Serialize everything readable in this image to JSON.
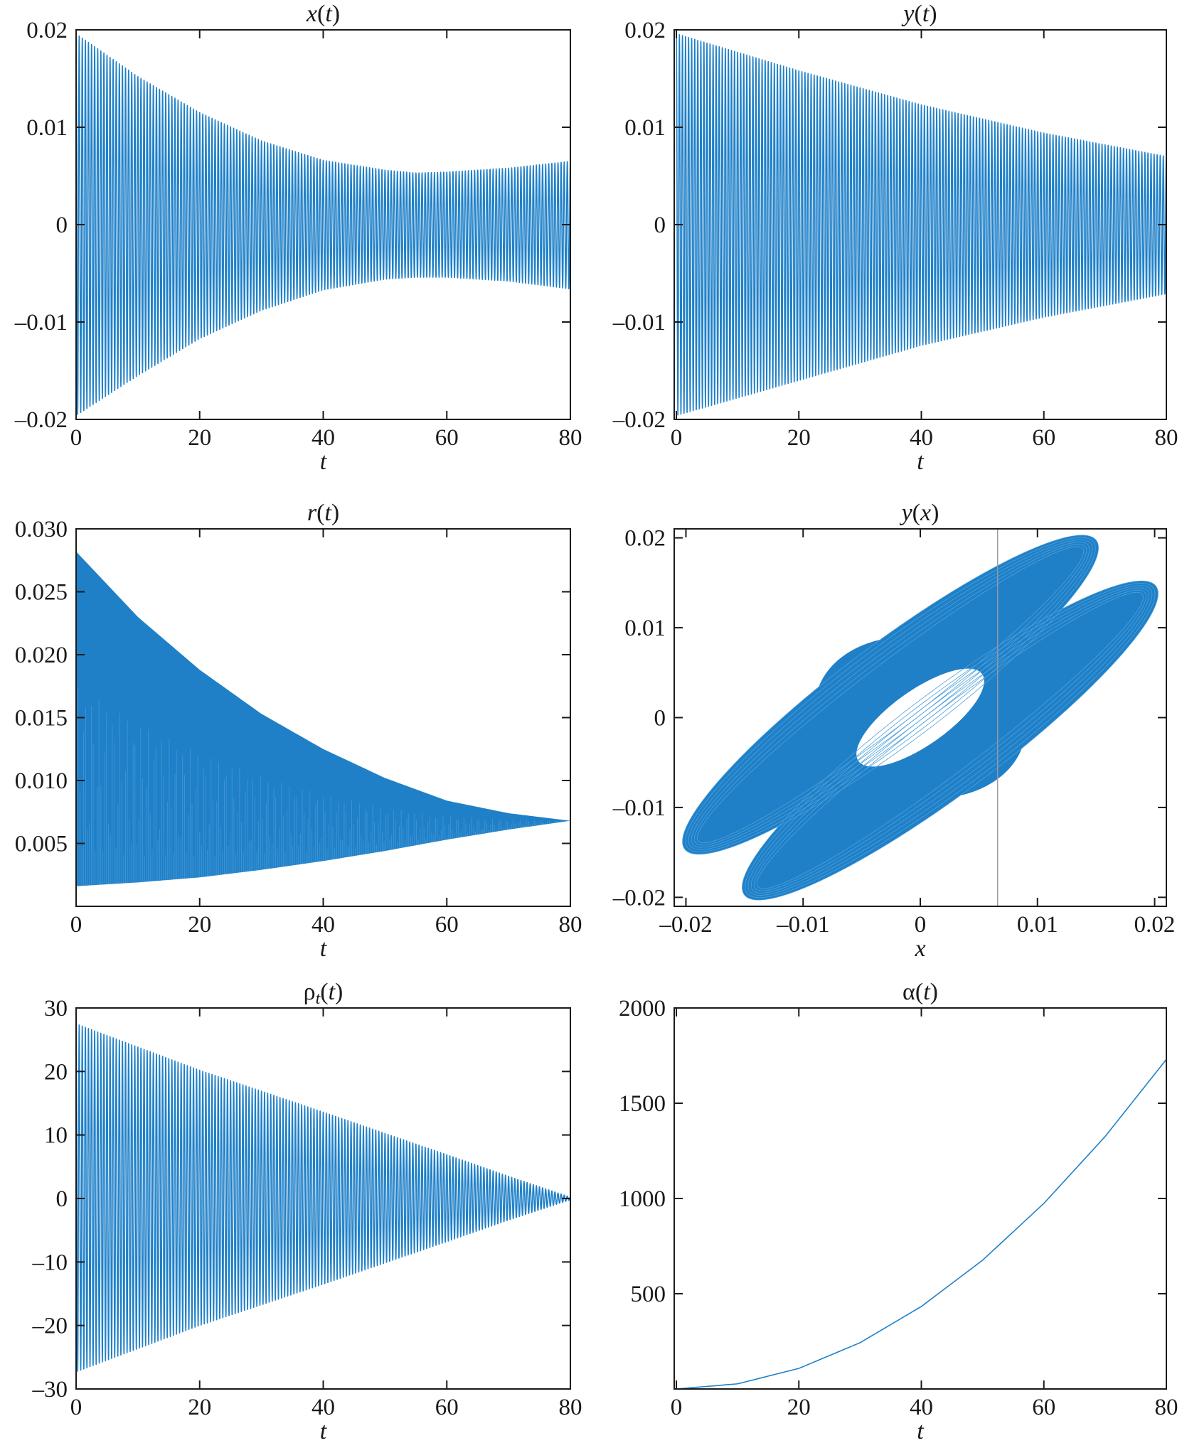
{
  "chart_data": [
    {
      "id": "x",
      "type": "line",
      "title_plain": "x(t)",
      "title_parts": [
        {
          "t": "x",
          "i": true
        },
        {
          "t": "("
        },
        {
          "t": "t",
          "i": true
        },
        {
          "t": ")"
        }
      ],
      "xlabel": "t",
      "xlim": [
        0,
        80
      ],
      "ylim": [
        -0.02,
        0.02
      ],
      "xticks": [
        0,
        20,
        40,
        60,
        80
      ],
      "xtick_labels": [
        "0",
        "20",
        "40",
        "60",
        "80"
      ],
      "yticks": [
        0.02,
        0.01,
        0,
        -0.01,
        -0.02
      ],
      "ytick_labels": [
        "0.02",
        "0.01",
        "0",
        "–0.01",
        "–0.02"
      ],
      "series": [
        {
          "kind": "oscillation",
          "cycles": 160,
          "envelope_t": [
            0,
            10,
            20,
            30,
            40,
            50,
            55,
            60,
            70,
            80
          ],
          "envelope_upper": [
            0.0196,
            0.0152,
            0.0115,
            0.0086,
            0.0066,
            0.0056,
            0.0053,
            0.0054,
            0.0058,
            0.0065
          ],
          "envelope_lower": [
            -0.0196,
            -0.0155,
            -0.0117,
            -0.0088,
            -0.0067,
            -0.0056,
            -0.0054,
            -0.0054,
            -0.0058,
            -0.0066
          ]
        }
      ],
      "grid": false
    },
    {
      "id": "y",
      "type": "line",
      "title_plain": "y(t)",
      "title_parts": [
        {
          "t": "y",
          "i": true
        },
        {
          "t": "("
        },
        {
          "t": "t",
          "i": true
        },
        {
          "t": ")"
        }
      ],
      "xlabel": "t",
      "xlim": [
        0,
        80
      ],
      "ylim": [
        -0.02,
        0.02
      ],
      "xticks": [
        0,
        20,
        40,
        60,
        80
      ],
      "xtick_labels": [
        "0",
        "20",
        "40",
        "60",
        "80"
      ],
      "yticks": [
        0.02,
        0.01,
        0,
        -0.01,
        -0.02
      ],
      "ytick_labels": [
        "0.02",
        "0.01",
        "0",
        "–0.01",
        "–0.02"
      ],
      "series": [
        {
          "kind": "oscillation",
          "cycles": 160,
          "envelope_t": [
            0,
            20,
            40,
            60,
            80
          ],
          "envelope_upper": [
            0.0196,
            0.0158,
            0.0123,
            0.0094,
            0.007
          ],
          "envelope_lower": [
            -0.0196,
            -0.016,
            -0.0124,
            -0.0095,
            -0.0071
          ]
        }
      ],
      "grid": false
    },
    {
      "id": "r",
      "type": "area",
      "title_plain": "r(t)",
      "title_parts": [
        {
          "t": "r",
          "i": true
        },
        {
          "t": "("
        },
        {
          "t": "t",
          "i": true
        },
        {
          "t": ")"
        }
      ],
      "xlabel": "t",
      "xlim": [
        0,
        80
      ],
      "ylim": [
        0,
        0.03
      ],
      "xticks": [
        0,
        20,
        40,
        60,
        80
      ],
      "xtick_labels": [
        "0",
        "20",
        "40",
        "60",
        "80"
      ],
      "yticks": [
        0.03,
        0.025,
        0.02,
        0.015,
        0.01,
        0.005
      ],
      "ytick_labels": [
        "0.030",
        "0.025",
        "0.020",
        "0.015",
        "0.010",
        "0.005"
      ],
      "series": [
        {
          "kind": "band",
          "t": [
            0,
            10,
            20,
            30,
            40,
            50,
            60,
            70,
            80
          ],
          "upper": [
            0.0282,
            0.023,
            0.0188,
            0.0153,
            0.0125,
            0.0102,
            0.0084,
            0.0074,
            0.0068
          ],
          "lower": [
            0.0016,
            0.0019,
            0.0023,
            0.0029,
            0.0036,
            0.0044,
            0.0053,
            0.0061,
            0.0068
          ]
        }
      ],
      "grid": false
    },
    {
      "id": "yx",
      "type": "line",
      "title_plain": "y(x)",
      "title_parts": [
        {
          "t": "y",
          "i": true
        },
        {
          "t": "("
        },
        {
          "t": "x",
          "i": true
        },
        {
          "t": ")"
        }
      ],
      "xlabel": "x",
      "xlim": [
        -0.021,
        0.021
      ],
      "ylim": [
        -0.021,
        0.021
      ],
      "xticks": [
        -0.02,
        -0.01,
        0,
        0.01,
        0.02
      ],
      "xtick_labels": [
        "–0.02",
        "–0.01",
        "0",
        "0.01",
        "0.02"
      ],
      "yticks": [
        0.02,
        0.01,
        0,
        -0.01,
        -0.02
      ],
      "ytick_labels": [
        "0.02",
        "0.01",
        "0",
        "–0.01",
        "–0.02"
      ],
      "series": [
        {
          "kind": "phase",
          "center_offset": 0.0036,
          "axis_dir": [
            0.707,
            0.707
          ],
          "outer_semi_axes": [
            0.0246,
            0.005
          ],
          "inner_semi_axes": [
            0.0072,
            0.005
          ],
          "vertical_line_x": 0.0066
        }
      ],
      "grid": false
    },
    {
      "id": "rho",
      "type": "line",
      "title_plain": "ρt(t)",
      "title_parts": [
        {
          "t": "ρ"
        },
        {
          "t": "t",
          "i": true,
          "sub": true
        },
        {
          "t": "("
        },
        {
          "t": "t",
          "i": true
        },
        {
          "t": ")"
        }
      ],
      "xlabel": "t",
      "xlim": [
        0,
        80
      ],
      "ylim": [
        -30,
        30
      ],
      "xticks": [
        0,
        20,
        40,
        60,
        80
      ],
      "xtick_labels": [
        "0",
        "20",
        "40",
        "60",
        "80"
      ],
      "yticks": [
        30,
        20,
        10,
        0,
        -10,
        -20,
        -30
      ],
      "ytick_labels": [
        "30",
        "20",
        "10",
        "0",
        "–10",
        "–20",
        "–30"
      ],
      "series": [
        {
          "kind": "oscillation",
          "cycles": 160,
          "envelope_t": [
            0,
            20,
            40,
            60,
            70,
            80
          ],
          "envelope_upper": [
            27.5,
            20.2,
            13.6,
            6.9,
            3.5,
            0.2
          ],
          "envelope_lower": [
            -27.3,
            -20.0,
            -13.5,
            -6.8,
            -3.4,
            -0.2
          ]
        }
      ],
      "grid": false
    },
    {
      "id": "alpha",
      "type": "line",
      "title_plain": "α(t)",
      "title_parts": [
        {
          "t": "α"
        },
        {
          "t": "("
        },
        {
          "t": "t",
          "i": true
        },
        {
          "t": ")"
        }
      ],
      "xlabel": "t",
      "xlim": [
        0,
        80
      ],
      "ylim": [
        0,
        2000
      ],
      "xticks": [
        0,
        20,
        40,
        60,
        80
      ],
      "xtick_labels": [
        "0",
        "20",
        "40",
        "60",
        "80"
      ],
      "yticks": [
        2000,
        1500,
        1000,
        500
      ],
      "ytick_labels": [
        "2000",
        "1500",
        "1000",
        "500"
      ],
      "series": [
        {
          "kind": "curve",
          "x": [
            0,
            10,
            20,
            30,
            40,
            50,
            60,
            70,
            80
          ],
          "y": [
            0,
            27,
            108,
            243,
            433,
            676,
            974,
            1325,
            1730
          ]
        }
      ],
      "grid": false
    }
  ]
}
